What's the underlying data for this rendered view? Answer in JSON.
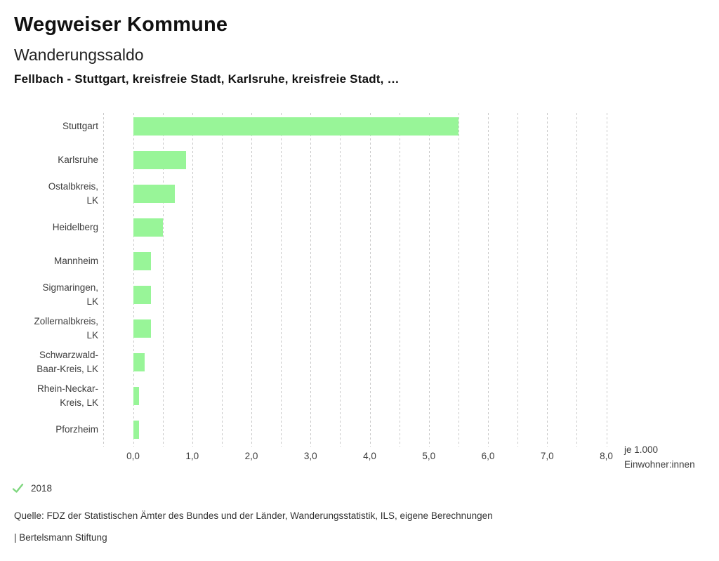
{
  "header": {
    "title": "Wegweiser Kommune",
    "subtitle": "Wanderungssaldo",
    "selection": "Fellbach - Stuttgart, kreisfreie Stadt, Karlsruhe, kreisfreie Stadt, …"
  },
  "chart_data": {
    "type": "bar",
    "orientation": "horizontal",
    "title": "Wanderungssaldo",
    "categories": [
      "Stuttgart",
      "Karlsruhe",
      "Ostalbkreis, LK",
      "Heidelberg",
      "Mannheim",
      "Sigmaringen, LK",
      "Zollernalbkreis, LK",
      "Schwarzwald-Baar-Kreis, LK",
      "Rhein-Neckar-Kreis, LK",
      "Pforzheim"
    ],
    "category_lines": [
      [
        "Stuttgart"
      ],
      [
        "Karlsruhe"
      ],
      [
        "Ostalbkreis,",
        "LK"
      ],
      [
        "Heidelberg"
      ],
      [
        "Mannheim"
      ],
      [
        "Sigmaringen,",
        "LK"
      ],
      [
        "Zollernalbkreis,",
        "LK"
      ],
      [
        "Schwarzwald-",
        "Baar-Kreis, LK"
      ],
      [
        "Rhein-Neckar-",
        "Kreis, LK"
      ],
      [
        "Pforzheim"
      ]
    ],
    "series": [
      {
        "name": "2018",
        "values": [
          5.5,
          0.9,
          0.7,
          0.5,
          0.3,
          0.3,
          0.3,
          0.2,
          0.1,
          0.1
        ]
      }
    ],
    "xlabel": "je 1.000 Einwohner:innen",
    "xlabel_lines": [
      "je 1.000",
      "Einwohner:innen"
    ],
    "ylabel": "",
    "xlim": [
      -0.5,
      8.0
    ],
    "grid_step": 0.5,
    "grid": true,
    "xticks": [
      {
        "value": 0,
        "label": "0,0"
      },
      {
        "value": 1,
        "label": "1,0"
      },
      {
        "value": 2,
        "label": "2,0"
      },
      {
        "value": 3,
        "label": "3,0"
      },
      {
        "value": 4,
        "label": "4,0"
      },
      {
        "value": 5,
        "label": "5,0"
      },
      {
        "value": 6,
        "label": "6,0"
      },
      {
        "value": 7,
        "label": "7,0"
      },
      {
        "value": 8,
        "label": "8,0"
      }
    ],
    "bar_color": "#98f598",
    "gridline_color": "#c9c9c9",
    "legend_position": "bottom"
  },
  "legend": {
    "items": [
      {
        "label": "2018",
        "checked": true,
        "check_color": "#7fd77f"
      }
    ]
  },
  "footer": {
    "source": "Quelle: FDZ der Statistischen Ämter des Bundes und der Länder, Wanderungsstatistik, ILS, eigene Berechnungen",
    "attribution": "| Bertelsmann Stiftung"
  }
}
